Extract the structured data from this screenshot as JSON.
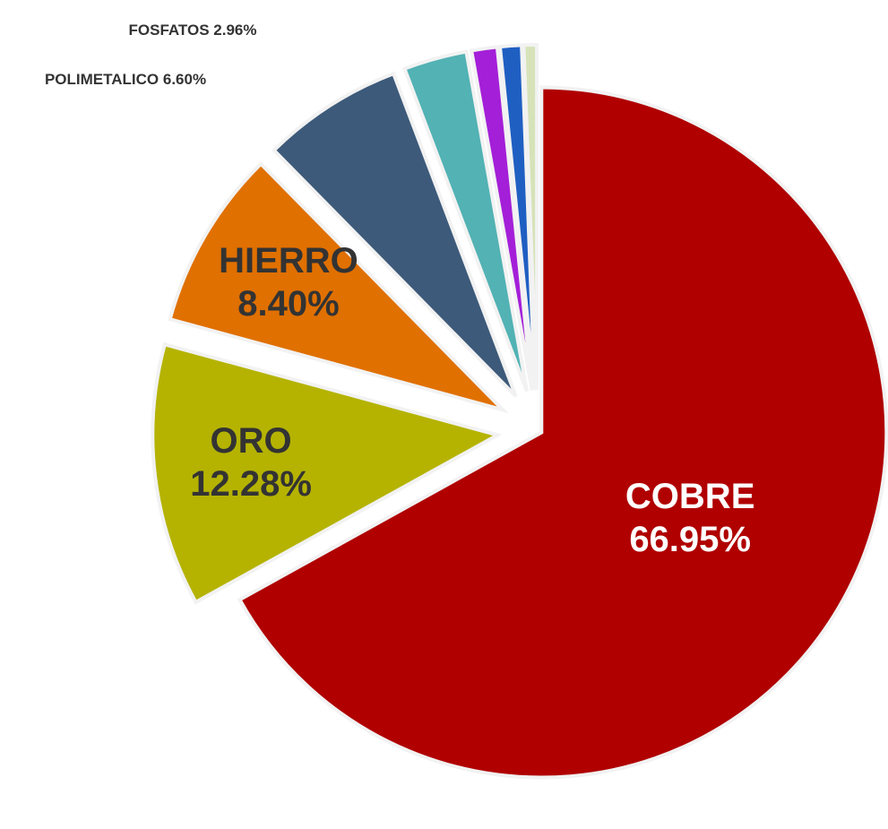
{
  "chart_data": {
    "type": "pie",
    "categories": [
      "COBRE",
      "ORO",
      "HIERRO",
      "POLIMETALICO",
      "FOSFATOS",
      null,
      null,
      null
    ],
    "values": [
      66.95,
      12.28,
      8.4,
      6.6,
      2.96,
      1.2,
      1.0,
      0.61
    ],
    "value_labels": [
      "66.95%",
      "12.28%",
      "8.40%",
      "6.60%",
      "2.96%",
      null,
      null,
      null
    ],
    "colors": [
      "#b00000",
      "#b5b300",
      "#e07000",
      "#3d5a7a",
      "#52b2b4",
      "#a41fd8",
      "#1f5fc2",
      "#d6e2b8"
    ]
  }
}
